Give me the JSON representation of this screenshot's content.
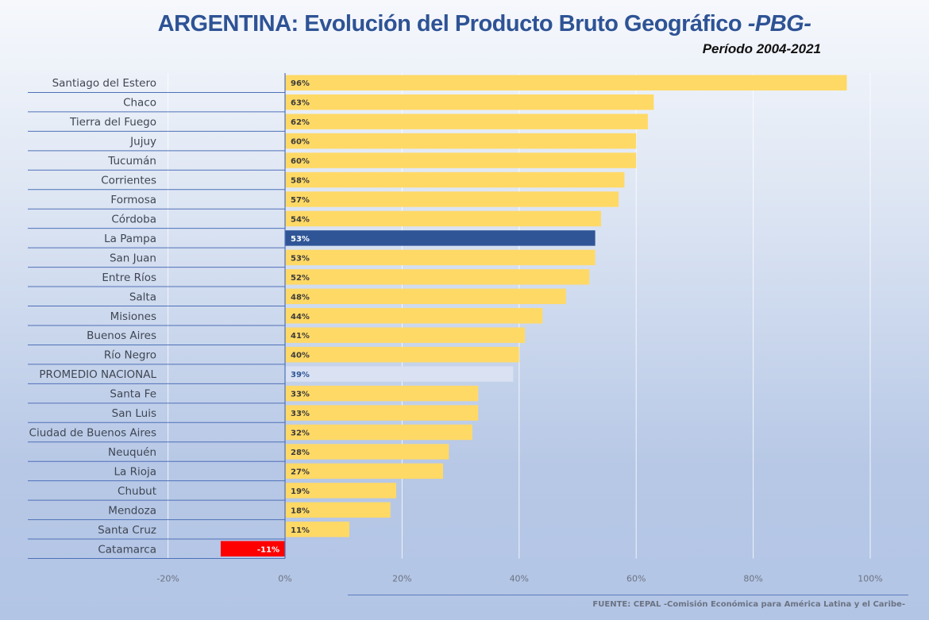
{
  "chart_data": {
    "type": "bar",
    "orientation": "horizontal",
    "title": "ARGENTINA: Evolución del Producto Bruto Geográfico",
    "title_suffix": "-PBG-",
    "subtitle": "Período 2004-2021",
    "source": "FUENTE: CEPAL -Comisión Económica para América Latina y el Caribe-",
    "categories": [
      "Santiago del Estero",
      "Chaco",
      "Tierra del Fuego",
      "Jujuy",
      "Tucumán",
      "Corrientes",
      "Formosa",
      "Córdoba",
      "La Pampa",
      "San Juan",
      "Entre Ríos",
      "Salta",
      "Misiones",
      "Buenos Aires",
      "Río Negro",
      "PROMEDIO NACIONAL",
      "Santa Fe",
      "San Luis",
      "Ciudad de Buenos Aires",
      "Neuquén",
      "La Rioja",
      "Chubut",
      "Mendoza",
      "Santa Cruz",
      "Catamarca"
    ],
    "values": [
      96,
      63,
      62,
      60,
      60,
      58,
      57,
      54,
      53,
      53,
      52,
      48,
      44,
      41,
      40,
      39,
      33,
      33,
      32,
      28,
      27,
      19,
      18,
      11,
      -11
    ],
    "data_labels": [
      "96%",
      "63%",
      "62%",
      "60%",
      "60%",
      "58%",
      "57%",
      "54%",
      "53%",
      "53%",
      "52%",
      "48%",
      "44%",
      "41%",
      "40%",
      "39%",
      "33%",
      "33%",
      "32%",
      "28%",
      "27%",
      "19%",
      "18%",
      "11%",
      "-11%"
    ],
    "xlim": [
      -20,
      100
    ],
    "x_ticks": [
      "-20%",
      "0%",
      "20%",
      "40%",
      "60%",
      "80%",
      "100%"
    ],
    "x_tick_values": [
      -20,
      0,
      20,
      40,
      60,
      80,
      100
    ],
    "grid": true,
    "colors": {
      "default": "#ffd966",
      "highlight": "#2f5597",
      "average": "#d9e1f2",
      "negative": "#ff0000",
      "title": "#2e5395"
    },
    "highlight_category": "La Pampa",
    "average_category": "PROMEDIO NACIONAL"
  }
}
